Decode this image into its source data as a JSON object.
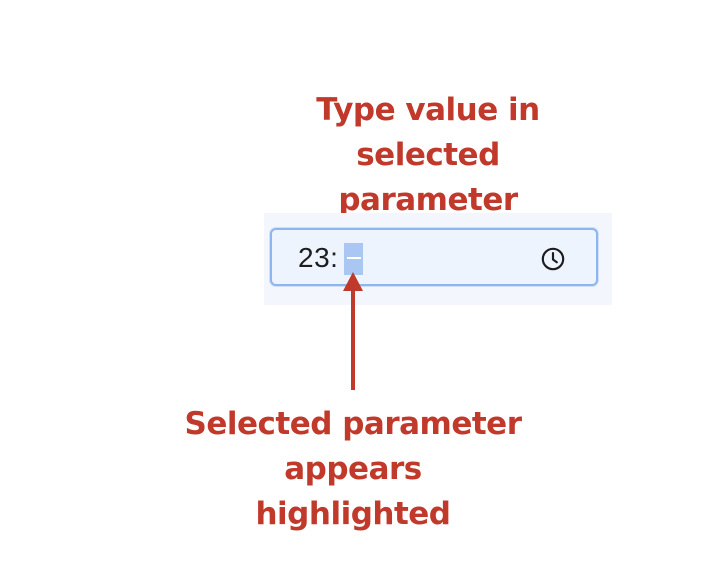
{
  "annotations": {
    "top": [
      "Type value in selected",
      "parameter"
    ],
    "bottom": [
      "Selected parameter appears",
      "highlighted"
    ]
  },
  "time_input": {
    "hour_value": "23:",
    "selected_segment": "minutes",
    "selected_value_placeholder": "--",
    "icon": "clock-icon"
  },
  "colors": {
    "annotation": "#c0392b",
    "input_border": "#8fb5ef",
    "input_background": "#eef4fd",
    "selection_highlight": "#a9c7f2"
  }
}
